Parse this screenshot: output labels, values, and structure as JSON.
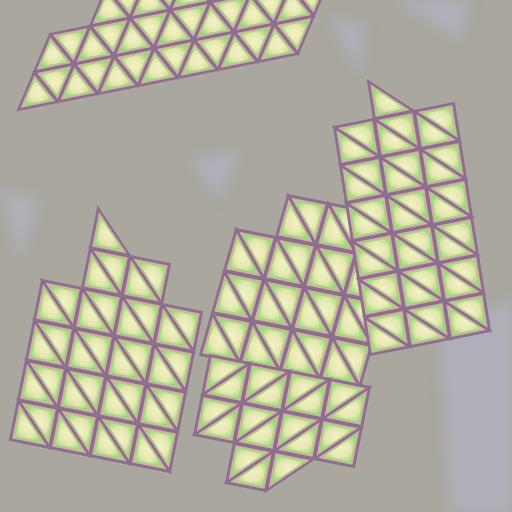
{
  "image": {
    "subject": "triangle-mesh-islands",
    "colors": {
      "background": "#a9a79e",
      "background_shade": "#b4b2c4",
      "tile_center": "#f2f2c6",
      "tile_mid": "#e6e8b0",
      "edge_green": "#9ad97a",
      "edge_pink": "#e7a3b2",
      "edge_purple": "#8a6f8f",
      "mesh_line": "#7f7a7f"
    },
    "islands": [
      {
        "name": "top-left-cluster"
      },
      {
        "name": "left-cluster"
      },
      {
        "name": "center-cluster"
      },
      {
        "name": "right-cluster"
      }
    ]
  }
}
